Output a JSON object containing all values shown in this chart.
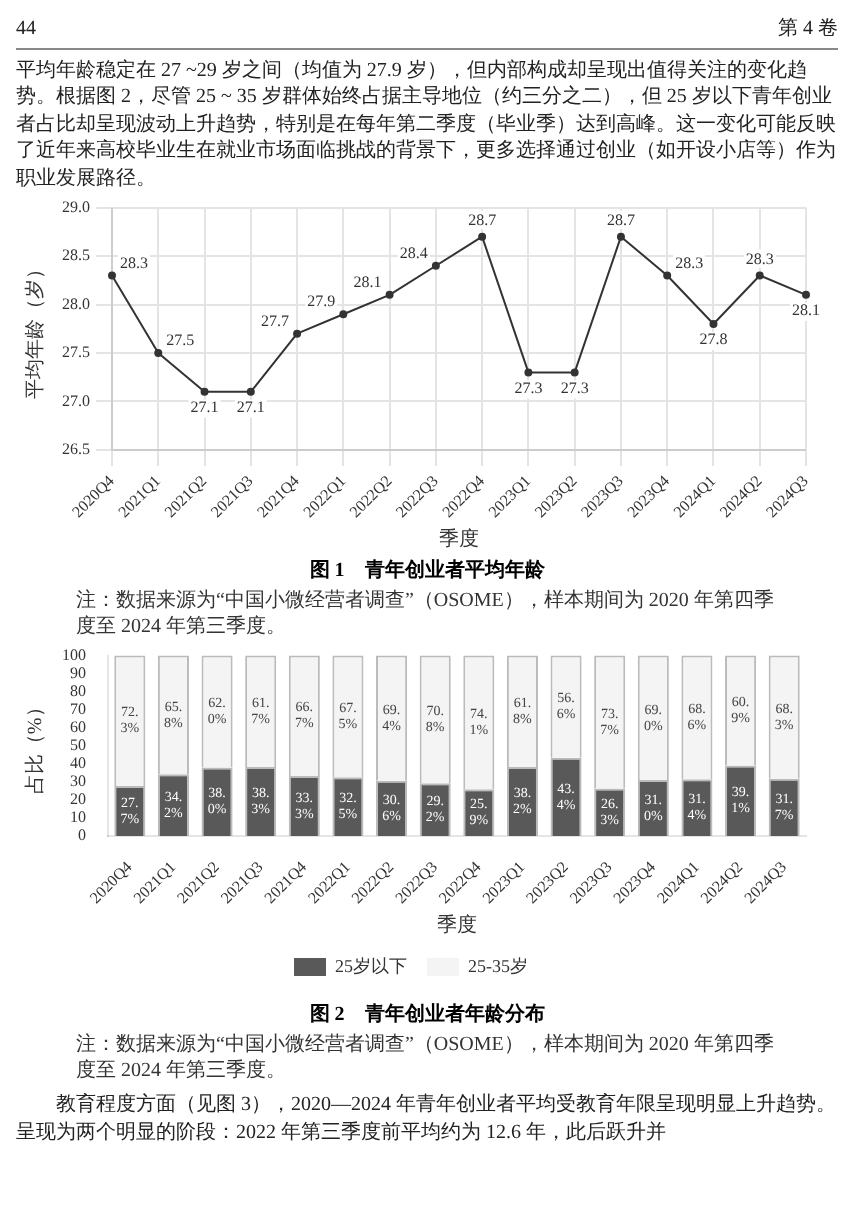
{
  "chart_data": [
    {
      "type": "other",
      "annotations": [
        "44",
        "第 4 卷",
        "平均年龄稳定在 27 ~29 岁之间（均值为 27.9 岁），但内部构成却呈现出值得关注的变化趋势。根据图 2，尽管 25 ~ 35 岁群体始终占据主导地位（约三分之二），但 25 岁以下青年创业者占比却呈现波动上升趋势，特别是在每年第二季度（毕业季）达到高峰。这一变化可能反映了近年来高校毕业生在就业市场面临挑战的背景下，更多选择通过创业（如开设小店等）作为职业发展路径。"
      ]
    },
    {
      "type": "line",
      "title": "图 1　青年创业者平均年龄",
      "xlabel": "季度",
      "ylabel": "平均年龄（岁）",
      "categories": [
        "2020Q4",
        "2021Q1",
        "2021Q2",
        "2021Q3",
        "2021Q4",
        "2022Q1",
        "2022Q2",
        "2022Q3",
        "2022Q4",
        "2023Q1",
        "2023Q2",
        "2023Q3",
        "2023Q4",
        "2024Q1",
        "2024Q2",
        "2024Q3"
      ],
      "values": [
        28.3,
        27.5,
        27.1,
        27.1,
        27.7,
        27.9,
        28.1,
        28.4,
        28.7,
        27.3,
        27.3,
        28.7,
        28.3,
        27.8,
        28.3,
        28.1
      ],
      "color": "#333333",
      "marker": "circle",
      "data_labels": true,
      "grid": true,
      "ylim": [
        26.5,
        29
      ],
      "yticks": [
        26.5,
        {
          "value": 27,
          "label": "27.0"
        },
        27.5,
        {
          "value": 28,
          "label": "28.0"
        },
        28.5,
        {
          "value": 29,
          "label": "29.0"
        }
      ],
      "annotations": [
        "注：数据来源为“中国小微经营者调查”（OSOME），样本期间为 2020 年第四季度至 2024 年第三季度。"
      ]
    },
    {
      "type": "bar",
      "stacked": true,
      "title": "图 2　青年创业者年龄分布",
      "xlabel": "季度",
      "ylabel": "占比（%）",
      "legend": "bottom",
      "categories": [
        "2020Q4",
        "2021Q1",
        "2021Q2",
        "2021Q3",
        "2021Q4",
        "2022Q1",
        "2022Q2",
        "2022Q3",
        "2022Q4",
        "2023Q1",
        "2023Q2",
        "2023Q3",
        "2023Q4",
        "2024Q1",
        "2024Q2",
        "2024Q3"
      ],
      "series": [
        {
          "name": "25岁以下",
          "color": "#595959",
          "values": [
            27.7,
            34.2,
            38.0,
            38.3,
            33.3,
            32.5,
            30.6,
            29.2,
            25.9,
            38.2,
            43.4,
            26.3,
            31.0,
            31.4,
            39.1,
            31.7
          ],
          "value_labels": [
            "27.7%",
            "34.2%",
            "38.0%",
            "38.3%",
            "33.3%",
            "32.5%",
            "30.6%",
            "29.2%",
            "25.9%",
            "38.2%",
            "43.4%",
            "26.3%",
            "31.0%",
            "31.4%",
            "39.1%",
            "31.7%"
          ]
        },
        {
          "name": "25-35岁",
          "color": "#f4f4f4",
          "values": [
            72.3,
            65.8,
            62.0,
            61.7,
            66.7,
            67.5,
            69.4,
            70.8,
            74.1,
            61.8,
            56.6,
            73.7,
            69.0,
            68.6,
            60.9,
            68.3
          ],
          "value_labels": [
            "72.3%",
            "65.8%",
            "62.0%",
            "61.7%",
            "66.7%",
            "67.5%",
            "69.4%",
            "70.8%",
            "74.1%",
            "61.8%",
            "56.6%",
            "73.7%",
            "69.0%",
            "68.6%",
            "60.9%",
            "68.3%"
          ]
        }
      ],
      "ylim": [
        0,
        100
      ],
      "yticks": [
        0,
        10,
        20,
        30,
        40,
        50,
        60,
        70,
        80,
        90,
        100
      ],
      "grid": false,
      "annotations": [
        "注：数据来源为“中国小微经营者调查”（OSOME），样本期间为 2020 年第四季度至 2024 年第三季度。"
      ]
    },
    {
      "type": "other",
      "annotations": [
        "教育程度方面（见图 3），2020—2024 年青年创业者平均受教育年限呈现明显上升趋势。呈现为两个明显的阶段：2022 年第三季度前平均约为 12.6 年，此后跃升并"
      ]
    }
  ]
}
